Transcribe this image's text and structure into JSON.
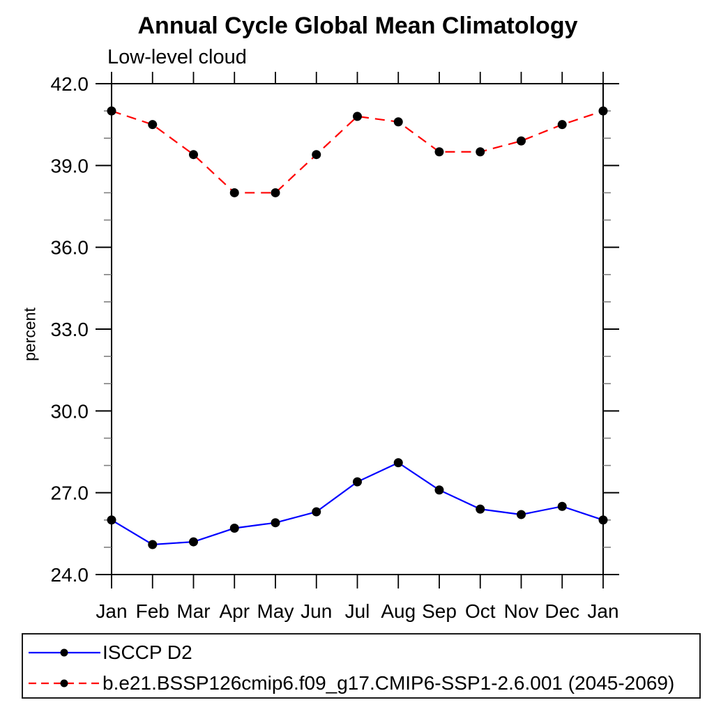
{
  "chart_data": {
    "type": "line",
    "title": "Annual Cycle Global Mean Climatology",
    "subtitle": "Low-level cloud",
    "xlabel": "",
    "ylabel": "percent",
    "background_color": "#ffffff",
    "axis_color": "#000000",
    "grid": "off",
    "legend_position": "bottom-left-box",
    "categories": [
      "Jan",
      "Feb",
      "Mar",
      "Apr",
      "May",
      "Jun",
      "Jul",
      "Aug",
      "Sep",
      "Oct",
      "Nov",
      "Dec",
      "Jan"
    ],
    "ylim": [
      24.0,
      42.0
    ],
    "yticks_major": [
      {
        "value": 24,
        "label": "24.0"
      },
      {
        "value": 27,
        "label": "27.0"
      },
      {
        "value": 30,
        "label": "30.0"
      },
      {
        "value": 33,
        "label": "33.0"
      },
      {
        "value": 36,
        "label": "36.0"
      },
      {
        "value": 39,
        "label": "39.0"
      },
      {
        "value": 42,
        "label": "42.0"
      }
    ],
    "yticks_minor_step": 1,
    "series": [
      {
        "name": "ISCCP D2",
        "color": "#0000ff",
        "line_style": "solid",
        "marker": "filled-circle",
        "marker_color": "#000000",
        "values": [
          26.0,
          25.1,
          25.2,
          25.7,
          25.9,
          26.3,
          27.4,
          28.1,
          27.1,
          26.4,
          26.2,
          26.5,
          26.0
        ]
      },
      {
        "name": "b.e21.BSSP126cmip6.f09_g17.CMIP6-SSP1-2.6.001 (2045-2069)",
        "color": "#ff0000",
        "line_style": "dashed",
        "marker": "filled-circle",
        "marker_color": "#000000",
        "values": [
          41.0,
          40.5,
          39.4,
          38.0,
          38.0,
          39.4,
          40.8,
          40.6,
          39.5,
          39.5,
          39.9,
          40.5,
          41.0
        ]
      }
    ]
  }
}
